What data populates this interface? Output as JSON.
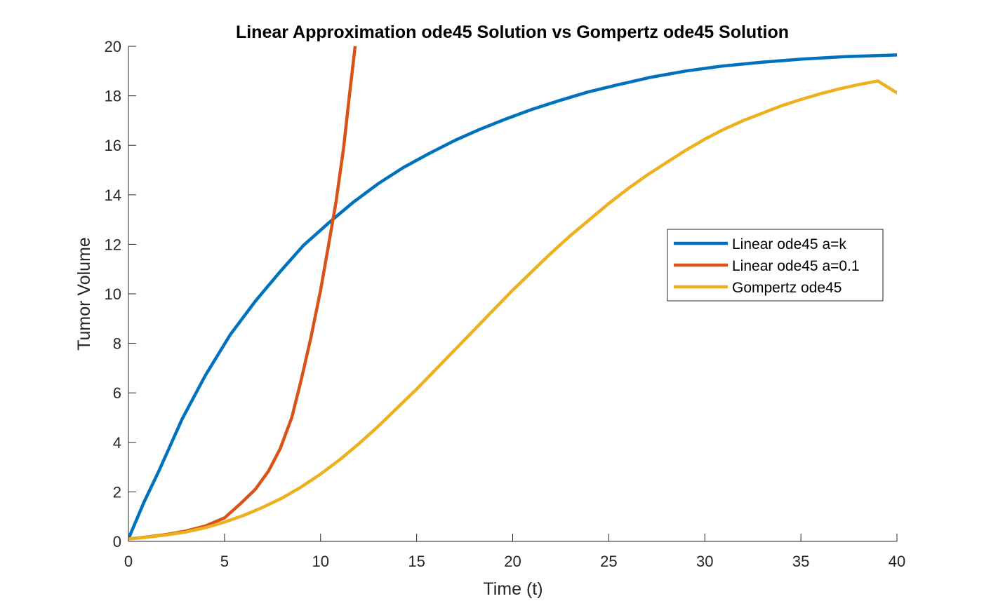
{
  "chart_data": {
    "type": "line",
    "title": "Linear Approximation ode45 Solution vs Gompertz ode45 Solution",
    "xlabel": "Time (t)",
    "ylabel": "Tumor Volume",
    "xlim": [
      0,
      40
    ],
    "ylim": [
      0,
      20
    ],
    "xticks": [
      0,
      5,
      10,
      15,
      20,
      25,
      30,
      35,
      40
    ],
    "yticks": [
      0,
      2,
      4,
      6,
      8,
      10,
      12,
      14,
      16,
      18,
      20
    ],
    "grid": false,
    "legend_position": "right",
    "series": [
      {
        "name": "Linear ode45 a=k",
        "color": "#0072BD",
        "x": [
          0,
          0.8,
          1.6,
          2.8,
          4,
          5.3,
          6.6,
          7.9,
          9.1,
          10.4,
          11.7,
          13,
          14.3,
          15.6,
          17,
          18.3,
          19.6,
          21,
          22.4,
          23.9,
          25.5,
          27.2,
          29,
          30.9,
          32.9,
          35,
          37.3,
          40
        ],
        "y": [
          0.1,
          1.57,
          2.87,
          4.95,
          6.7,
          8.35,
          9.7,
          10.9,
          11.95,
          12.85,
          13.7,
          14.45,
          15.1,
          15.65,
          16.2,
          16.65,
          17.05,
          17.45,
          17.8,
          18.15,
          18.45,
          18.75,
          19,
          19.2,
          19.35,
          19.48,
          19.58,
          19.65
        ]
      },
      {
        "name": "Linear ode45 a=0.1",
        "color": "#D95319",
        "x": [
          0,
          1,
          2,
          3,
          4,
          5,
          5.8,
          6.6,
          7.3,
          7.9,
          8.5,
          9,
          9.5,
          10,
          10.4,
          10.8,
          11.2,
          11.5,
          11.8
        ],
        "y": [
          0.1,
          0.18,
          0.28,
          0.42,
          0.62,
          0.95,
          1.5,
          2.1,
          2.85,
          3.75,
          5.0,
          6.55,
          8.25,
          10.15,
          11.9,
          13.7,
          15.9,
          18.0,
          20.0
        ]
      },
      {
        "name": "Gompertz ode45",
        "color": "#EDB120",
        "x": [
          0,
          1,
          2,
          3,
          4,
          5,
          6,
          7,
          8,
          9,
          10,
          11,
          12,
          13,
          14,
          15,
          16,
          17,
          18,
          19,
          20,
          21,
          22,
          23,
          24,
          25,
          26,
          27,
          28,
          29,
          30,
          31,
          32,
          33,
          34,
          35,
          36,
          37,
          38,
          39,
          40
        ],
        "y": [
          0.1,
          0.17,
          0.26,
          0.38,
          0.55,
          0.78,
          1.05,
          1.38,
          1.75,
          2.2,
          2.72,
          3.3,
          3.95,
          4.65,
          5.4,
          6.15,
          6.95,
          7.75,
          8.55,
          9.35,
          10.15,
          10.9,
          11.65,
          12.35,
          13.0,
          13.65,
          14.25,
          14.8,
          15.3,
          15.8,
          16.25,
          16.65,
          17.0,
          17.3,
          17.6,
          17.85,
          18.08,
          18.28,
          18.45,
          18.6,
          18.12
        ]
      }
    ]
  }
}
